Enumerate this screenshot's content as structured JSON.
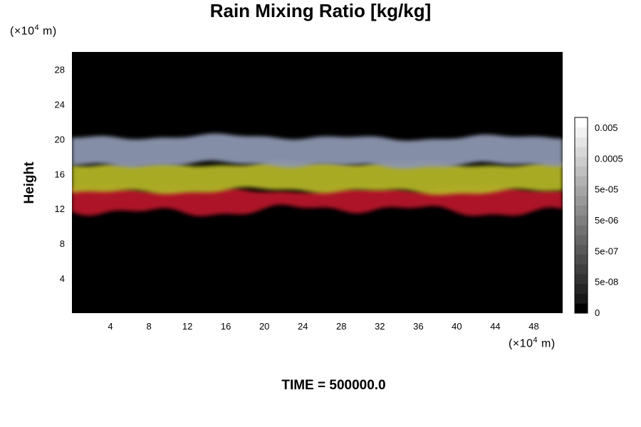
{
  "chart_data": {
    "type": "heatmap",
    "title": "Rain Mixing Ratio [kg/kg]",
    "ylabel": "Height",
    "x_unit_prefix": "(×10",
    "x_unit_exp": "4",
    "x_unit_suffix": " m)",
    "y_unit_prefix": "(×10",
    "y_unit_exp": "4",
    "y_unit_suffix": " m)",
    "xlim": [
      0,
      51
    ],
    "ylim": [
      0,
      30
    ],
    "x_ticks": [
      4,
      8,
      12,
      16,
      20,
      24,
      28,
      32,
      36,
      40,
      44,
      48
    ],
    "y_ticks": [
      4,
      8,
      12,
      16,
      20,
      24,
      28
    ],
    "background_color": "#000000",
    "layers": [
      {
        "color": "#b8122a",
        "bottom": 11.8,
        "top": 14.2
      },
      {
        "color": "#b3b428",
        "bottom": 14.0,
        "top": 17.2
      },
      {
        "color": "#8d96b0",
        "bottom": 17.0,
        "top": 20.2
      }
    ],
    "colorbar": {
      "tick_labels": [
        "0.005",
        "0.0005",
        "5e-05",
        "5e-06",
        "5e-07",
        "5e-08",
        "0"
      ],
      "colors": [
        "#000000",
        "#191919",
        "#262626",
        "#333333",
        "#3f3f3f",
        "#4c4c4c",
        "#595959",
        "#666666",
        "#727272",
        "#7f7f7f",
        "#8c8c8c",
        "#999999",
        "#a5a5a5",
        "#b2b2b2",
        "#bfbfbf",
        "#cccccc",
        "#d8d8d8",
        "#e5e5e5",
        "#f2f2f2",
        "#ffffff"
      ]
    },
    "footer": "TIME = 500000.0"
  }
}
